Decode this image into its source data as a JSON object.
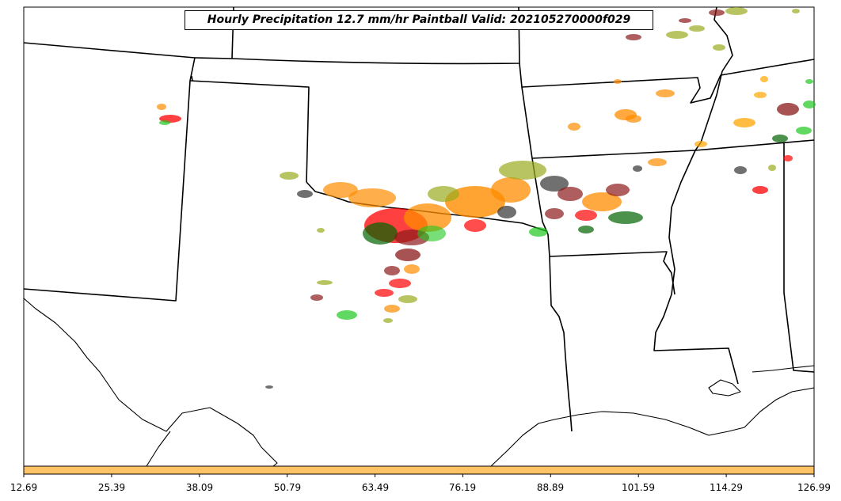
{
  "title": "Hourly Precipitation 12.7 mm/hr Paintball Valid: 202105270000f029",
  "colorbar": {
    "color": "#ffc266",
    "tick_labels": [
      "12.69",
      "25.39",
      "38.09",
      "50.79",
      "63.49",
      "76.19",
      "88.89",
      "101.59",
      "114.29",
      "126.99"
    ]
  },
  "member_colors": [
    "#ff0000",
    "#ff8c00",
    "#9aab1e",
    "#006400",
    "#8b1a1a",
    "#333333",
    "#1ec81e",
    "#ffa500"
  ],
  "map_background": "#ffffff"
}
